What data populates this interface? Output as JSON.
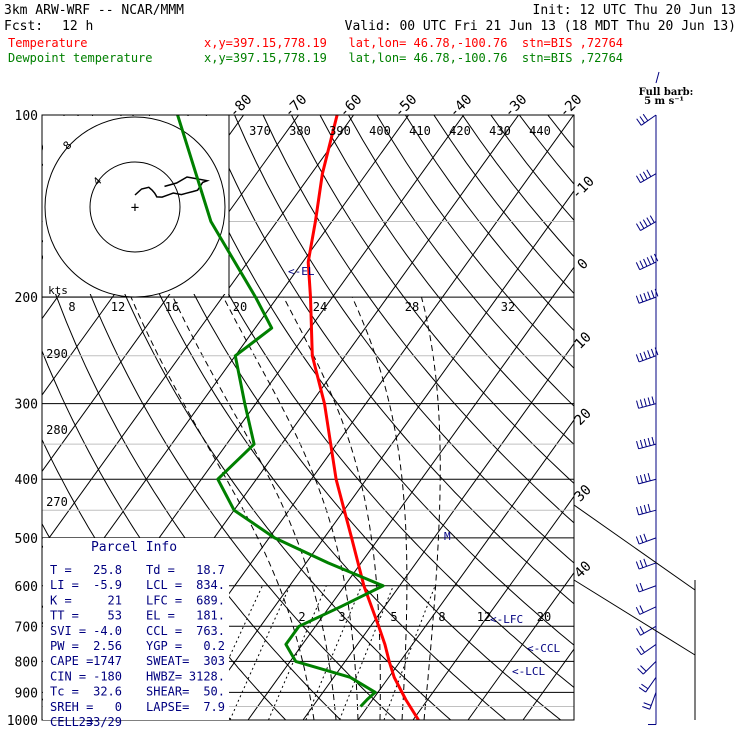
{
  "header": {
    "model": "3km ARW-WRF -- NCAR/MMM",
    "init": "Init: 12 UTC Thu 20 Jun 13",
    "fcst_label": "Fcst:",
    "fcst_value": "12 h",
    "valid": "Valid: 00 UTC Fri 21 Jun 13 (18 MDT Thu 20 Jun 13)",
    "temp_label": "Temperature",
    "temp_loc": "x,y=397.15,778.19   lat,lon= 46.78,-100.76  stn=BIS ,72764",
    "dew_label": "Dewpoint temperature",
    "dew_loc": "x,y=397.15,778.19   lat,lon= 46.78,-100.76  stn=BIS ,72764"
  },
  "colors": {
    "temperature": "#ff0000",
    "dewpoint": "#008000",
    "panel_text": "#000080",
    "wind_barbs": "#000080",
    "header_blue": "#0000ff"
  },
  "full_barb": {
    "line1": "Full barb:",
    "line2": "5 m s⁻¹"
  },
  "parcel_info": {
    "title": "Parcel Info",
    "rows": [
      [
        "T   =",
        "25.8",
        "Td =",
        "18.7"
      ],
      [
        "LI  =",
        "-5.9",
        "LCL =",
        "834."
      ],
      [
        "K   =",
        "21",
        "LFC =",
        "689."
      ],
      [
        "TT  =",
        "53",
        "EL  =",
        "181."
      ],
      [
        "SVI =",
        "-4.0",
        "CCL =",
        "763."
      ],
      [
        "PW  =",
        "2.56",
        "YGP =",
        "0.2"
      ],
      [
        "CAPE =",
        "1747",
        "SWEAT=",
        "303"
      ],
      [
        "CIN  =",
        "-180",
        "HWBZ=",
        "3128."
      ],
      [
        "Tc   =",
        "32.6",
        "SHEAR=",
        "50."
      ],
      [
        "SREH =",
        "0",
        "LAPSE=",
        "7.9"
      ],
      [
        "CELL =",
        "233/29",
        "",
        ""
      ]
    ]
  },
  "hodograph": {
    "ring_labels": [
      "8",
      "4"
    ],
    "kts_label": "kts",
    "center_symbol": "+"
  },
  "chart_data": {
    "type": "line",
    "title": "",
    "x_scale": "skew-T temperature (°C)",
    "y_scale": "log pressure (hPa)",
    "ylim": [
      1000,
      100
    ],
    "pressure_labels": [
      "100",
      "200",
      "300",
      "400",
      "500",
      "600",
      "700",
      "800",
      "900",
      "1000"
    ],
    "pressure_levels": [
      100,
      200,
      300,
      400,
      500,
      600,
      700,
      800,
      900,
      1000
    ],
    "isotherm_labels": [
      "-80",
      "-70",
      "-60",
      "-50",
      "-40",
      "-30",
      "-20",
      "-10",
      "0",
      "10",
      "20",
      "30",
      "40"
    ],
    "isotherm_values": [
      -80,
      -70,
      -60,
      -50,
      -40,
      -30,
      -20,
      -10,
      0,
      10,
      20,
      30,
      40
    ],
    "theta_labels_top": [
      "370",
      "380",
      "390",
      "400",
      "410",
      "420",
      "430",
      "440"
    ],
    "theta_labels_left": [
      "290",
      "280",
      "270"
    ],
    "mixing_ratio_labels_200": [
      "8",
      "12",
      "16",
      "20",
      "24",
      "28",
      "32"
    ],
    "mixing_ratio_labels_700": [
      "2",
      "3",
      "5",
      "8",
      "12",
      "20"
    ],
    "level_markers": [
      "<-EL",
      "<-LFC",
      "<-CCL",
      "<-LCL"
    ],
    "series": [
      {
        "name": "Temperature",
        "points": [
          [
            1000,
            31
          ],
          [
            925,
            26
          ],
          [
            850,
            21
          ],
          [
            800,
            18
          ],
          [
            750,
            15
          ],
          [
            700,
            11.5
          ],
          [
            600,
            3.5
          ],
          [
            500,
            -5
          ],
          [
            400,
            -15.5
          ],
          [
            300,
            -27.5
          ],
          [
            250,
            -36
          ],
          [
            200,
            -44
          ],
          [
            175,
            -49
          ],
          [
            150,
            -53
          ],
          [
            125,
            -58
          ],
          [
            100,
            -63
          ]
        ]
      },
      {
        "name": "Dewpoint temperature",
        "points": [
          [
            950,
            18.7
          ],
          [
            925,
            19
          ],
          [
            900,
            19.5
          ],
          [
            850,
            13
          ],
          [
            800,
            1
          ],
          [
            750,
            -3
          ],
          [
            700,
            -3
          ],
          [
            650,
            2
          ],
          [
            600,
            7
          ],
          [
            550,
            -6
          ],
          [
            500,
            -19
          ],
          [
            450,
            -30
          ],
          [
            400,
            -37
          ],
          [
            350,
            -35
          ],
          [
            300,
            -42
          ],
          [
            250,
            -50
          ],
          [
            225,
            -47
          ],
          [
            200,
            -54
          ],
          [
            150,
            -72
          ],
          [
            100,
            -92
          ]
        ]
      }
    ],
    "wind_barbs_ms": [
      {
        "p": 950,
        "dir": 180,
        "spd": 5
      },
      {
        "p": 900,
        "dir": 200,
        "spd": 8
      },
      {
        "p": 850,
        "dir": 215,
        "spd": 10
      },
      {
        "p": 800,
        "dir": 225,
        "spd": 10
      },
      {
        "p": 750,
        "dir": 235,
        "spd": 10
      },
      {
        "p": 700,
        "dir": 240,
        "spd": 10
      },
      {
        "p": 650,
        "dir": 245,
        "spd": 10
      },
      {
        "p": 600,
        "dir": 250,
        "spd": 12
      },
      {
        "p": 550,
        "dir": 250,
        "spd": 15
      },
      {
        "p": 500,
        "dir": 250,
        "spd": 17
      },
      {
        "p": 450,
        "dir": 255,
        "spd": 20
      },
      {
        "p": 400,
        "dir": 255,
        "spd": 22
      },
      {
        "p": 350,
        "dir": 255,
        "spd": 25
      },
      {
        "p": 300,
        "dir": 255,
        "spd": 27
      },
      {
        "p": 250,
        "dir": 250,
        "spd": 30
      },
      {
        "p": 200,
        "dir": 250,
        "spd": 32
      },
      {
        "p": 175,
        "dir": 245,
        "spd": 28
      },
      {
        "p": 150,
        "dir": 240,
        "spd": 25
      },
      {
        "p": 125,
        "dir": 240,
        "spd": 20
      },
      {
        "p": 100,
        "dir": 235,
        "spd": 15
      }
    ]
  }
}
